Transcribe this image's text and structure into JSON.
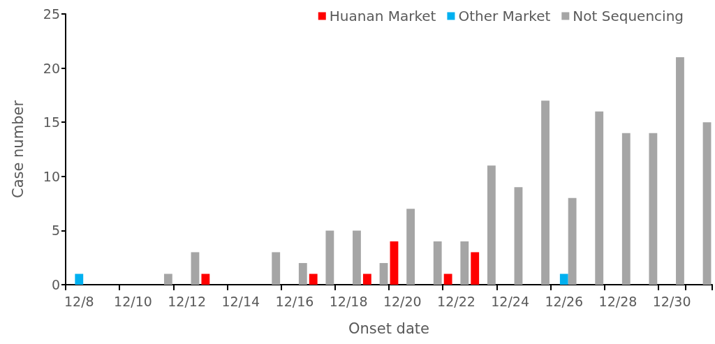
{
  "chart_data": {
    "type": "bar",
    "xlabel": "Onset date",
    "ylabel": "Case number",
    "categories": [
      "12/8",
      null,
      "12/10",
      null,
      "12/12",
      null,
      "12/14",
      null,
      "12/16",
      null,
      "12/18",
      null,
      "12/20",
      null,
      "12/22",
      null,
      "12/24",
      null,
      "12/26",
      null,
      "12/28",
      null,
      "12/30",
      null
    ],
    "series": [
      {
        "name": "Huanan Market",
        "color": "#ff0000",
        "values": [
          0,
          0,
          0,
          0,
          0,
          1,
          0,
          0,
          0,
          1,
          0,
          1,
          4,
          0,
          1,
          3,
          0,
          0,
          0,
          0,
          0,
          0,
          0,
          0
        ]
      },
      {
        "name": "Other Market",
        "color": "#00b0f0",
        "values": [
          1,
          0,
          0,
          0,
          0,
          0,
          0,
          0,
          0,
          0,
          0,
          0,
          0,
          0,
          0,
          0,
          0,
          0,
          1,
          0,
          0,
          0,
          0,
          0
        ]
      },
      {
        "name": "Not Sequencing",
        "color": "#a5a5a5",
        "values": [
          0,
          0,
          0,
          1,
          3,
          0,
          0,
          3,
          2,
          5,
          5,
          2,
          7,
          4,
          4,
          11,
          9,
          17,
          8,
          16,
          14,
          14,
          21,
          15
        ]
      }
    ],
    "ylim": [
      0,
      25
    ],
    "yticks": [
      0,
      5,
      10,
      15,
      20,
      25
    ],
    "grid": false,
    "legend": "top right"
  }
}
